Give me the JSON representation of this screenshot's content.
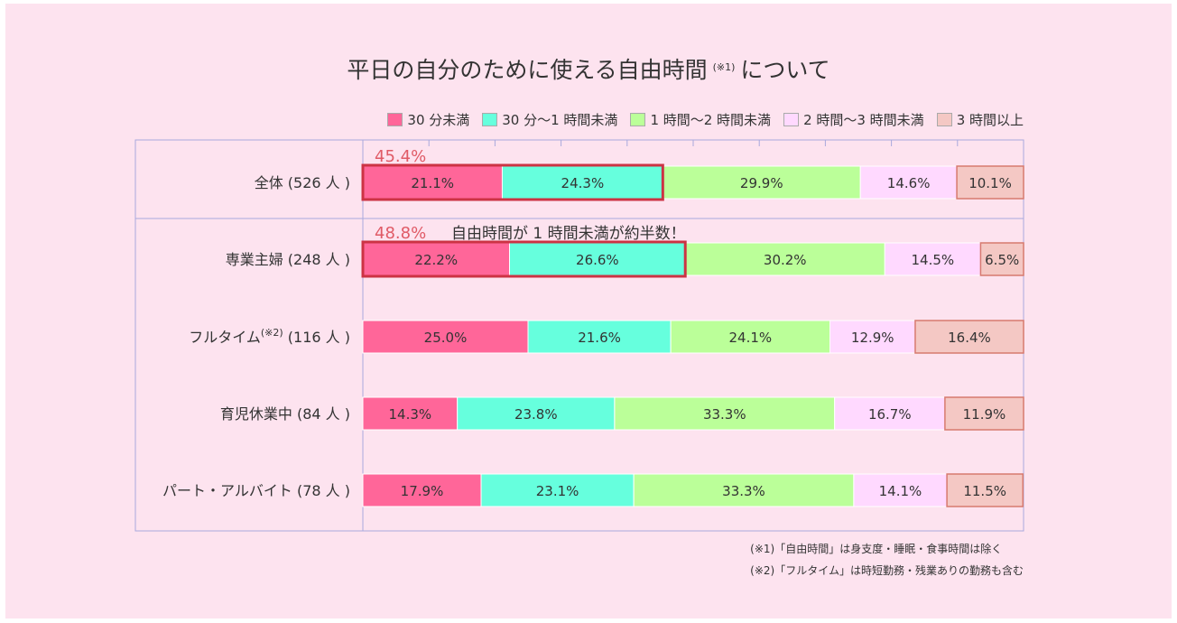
{
  "title": {
    "main": "平日の自分のために使える自由時間",
    "note_mark": "(※1)",
    "suffix": "について"
  },
  "notes": [
    "(※1)「自由時間」は身支度・睡眠・食事時間は除く",
    "(※2)「フルタイム」は時短勤務・残業ありの勤務も含む"
  ],
  "colors": {
    "background": "#fde3ef",
    "frame": "#a9a9dd"
  },
  "chart_data": {
    "type": "bar",
    "orientation": "horizontal",
    "stacked": true,
    "xlim": [
      0,
      100
    ],
    "grid": true,
    "legend_position": "top-right",
    "unit": "%",
    "categories": [
      "全体 (526 人 )",
      "専業主婦 (248 人 )",
      "フルタイム",
      "育児休業中 (84 人 )",
      "パート・アルバイト (78 人 )"
    ],
    "category_suffix": [
      "",
      "",
      "(116 人 )",
      "",
      ""
    ],
    "category_note": [
      "",
      "",
      "(※2)",
      "",
      ""
    ],
    "series": [
      {
        "name": "30 分未満",
        "color": "#ff6699",
        "values": [
          21.1,
          22.2,
          25.0,
          14.3,
          17.9
        ]
      },
      {
        "name": "30 分〜1 時間未満",
        "color": "#66ffdd",
        "values": [
          24.3,
          26.6,
          21.6,
          23.8,
          23.1
        ]
      },
      {
        "name": "1 時間〜2 時間未満",
        "color": "#bbff99",
        "values": [
          29.9,
          30.2,
          24.1,
          33.3,
          33.3
        ]
      },
      {
        "name": "2 時間〜3 時間未満",
        "color": "#ffd9ff",
        "values": [
          14.6,
          14.5,
          12.9,
          16.7,
          14.1
        ]
      },
      {
        "name": "3 時間以上",
        "color": "#f4c8c4",
        "values": [
          10.1,
          6.5,
          16.4,
          11.9,
          11.5
        ]
      }
    ],
    "value_labels": [
      [
        "21.1%",
        "24.3%",
        "29.9%",
        "14.6%",
        "10.1%"
      ],
      [
        "22.2%",
        "26.6%",
        "30.2%",
        "14.5%",
        "6.5%"
      ],
      [
        "25.0%",
        "21.6%",
        "24.1%",
        "12.9%",
        "16.4%"
      ],
      [
        "14.3%",
        "23.8%",
        "33.3%",
        "16.7%",
        "11.9%"
      ],
      [
        "17.9%",
        "23.1%",
        "33.3%",
        "14.1%",
        "11.5%"
      ]
    ],
    "highlights": [
      {
        "category_index": 0,
        "value": 45.4,
        "label": "45.4%",
        "text": ""
      },
      {
        "category_index": 1,
        "value": 48.8,
        "label": "48.8%",
        "text": "自由時間が 1 時間未満が約半数！"
      }
    ]
  }
}
